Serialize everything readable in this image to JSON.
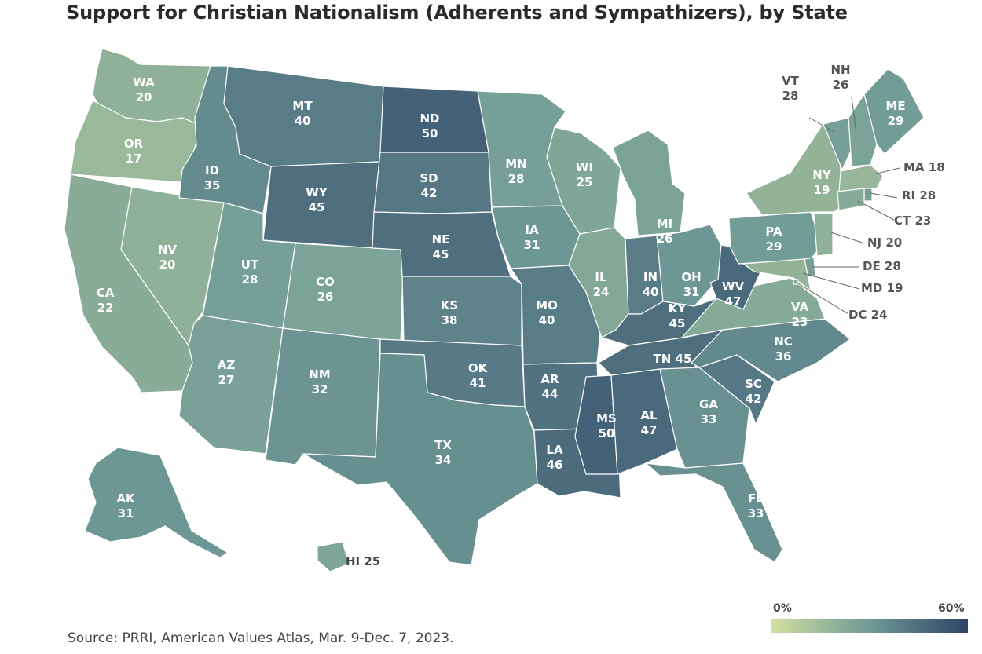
{
  "title": "Support for Christian Nationalism (Adherents and Sympathizers), by State",
  "source": "Source: PRRI, American Values Atlas, Mar. 9-Dec. 7, 2023.",
  "legend": {
    "min_label": "0%",
    "max_label": "60%",
    "min_value": 0,
    "max_value": 60,
    "color_low": "#d2df9f",
    "color_mid": "#6f9a96",
    "color_high": "#2e4468"
  },
  "states": [
    {
      "abbr": "WA",
      "value": 20
    },
    {
      "abbr": "OR",
      "value": 17
    },
    {
      "abbr": "CA",
      "value": 22
    },
    {
      "abbr": "NV",
      "value": 20
    },
    {
      "abbr": "ID",
      "value": 35
    },
    {
      "abbr": "MT",
      "value": 40
    },
    {
      "abbr": "WY",
      "value": 45
    },
    {
      "abbr": "UT",
      "value": 28
    },
    {
      "abbr": "CO",
      "value": 26
    },
    {
      "abbr": "AZ",
      "value": 27
    },
    {
      "abbr": "NM",
      "value": 32
    },
    {
      "abbr": "ND",
      "value": 50
    },
    {
      "abbr": "SD",
      "value": 42
    },
    {
      "abbr": "NE",
      "value": 45
    },
    {
      "abbr": "KS",
      "value": 38
    },
    {
      "abbr": "OK",
      "value": 41
    },
    {
      "abbr": "TX",
      "value": 34
    },
    {
      "abbr": "MN",
      "value": 28
    },
    {
      "abbr": "IA",
      "value": 31
    },
    {
      "abbr": "MO",
      "value": 40
    },
    {
      "abbr": "AR",
      "value": 44
    },
    {
      "abbr": "LA",
      "value": 46
    },
    {
      "abbr": "WI",
      "value": 25
    },
    {
      "abbr": "IL",
      "value": 24
    },
    {
      "abbr": "MI",
      "value": 26
    },
    {
      "abbr": "IN",
      "value": 40
    },
    {
      "abbr": "OH",
      "value": 31
    },
    {
      "abbr": "KY",
      "value": 45
    },
    {
      "abbr": "TN",
      "value": 45
    },
    {
      "abbr": "MS",
      "value": 50
    },
    {
      "abbr": "AL",
      "value": 47
    },
    {
      "abbr": "GA",
      "value": 33
    },
    {
      "abbr": "FL",
      "value": 33
    },
    {
      "abbr": "SC",
      "value": 42
    },
    {
      "abbr": "NC",
      "value": 36
    },
    {
      "abbr": "VA",
      "value": 23
    },
    {
      "abbr": "WV",
      "value": 47
    },
    {
      "abbr": "PA",
      "value": 29
    },
    {
      "abbr": "NY",
      "value": 19
    },
    {
      "abbr": "ME",
      "value": 29
    },
    {
      "abbr": "VT",
      "value": 28
    },
    {
      "abbr": "NH",
      "value": 26
    },
    {
      "abbr": "MA",
      "value": 18
    },
    {
      "abbr": "RI",
      "value": 28
    },
    {
      "abbr": "CT",
      "value": 23
    },
    {
      "abbr": "NJ",
      "value": 20
    },
    {
      "abbr": "DE",
      "value": 28
    },
    {
      "abbr": "MD",
      "value": 19
    },
    {
      "abbr": "DC",
      "value": 24
    },
    {
      "abbr": "AK",
      "value": 31
    },
    {
      "abbr": "HI",
      "value": 25
    }
  ]
}
